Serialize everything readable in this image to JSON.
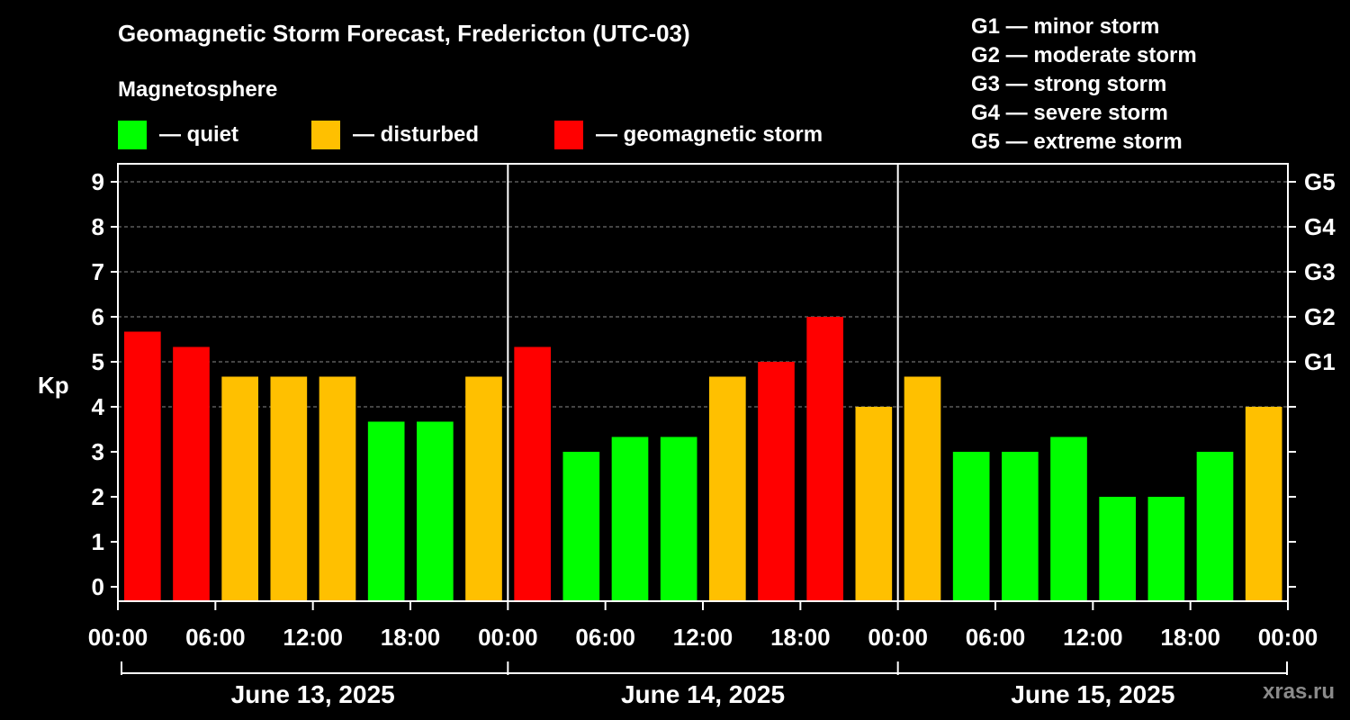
{
  "title": "Geomagnetic Storm Forecast, Fredericton (UTC-03)",
  "magnetosphere_label": "Magnetosphere",
  "legend": [
    {
      "label": "— quiet",
      "color": "#00ff00"
    },
    {
      "label": "— disturbed",
      "color": "#ffc000"
    },
    {
      "label": "— geomagnetic storm",
      "color": "#ff0000"
    }
  ],
  "g_scale": [
    "G1 — minor storm",
    "G2 — moderate storm",
    "G3 — strong storm",
    "G4 — severe storm",
    "G5 — extreme storm"
  ],
  "watermark": "xras.ru",
  "colors": {
    "quiet": "#00ff00",
    "disturbed": "#ffc000",
    "storm": "#ff0000",
    "grid": "#888888",
    "axis": "#ffffff"
  },
  "chart_data": {
    "type": "bar",
    "ylabel": "Kp",
    "ylim": [
      0,
      9
    ],
    "yticks": [
      0,
      1,
      2,
      3,
      4,
      5,
      6,
      7,
      8,
      9
    ],
    "right_ticks": [
      {
        "kp": 5,
        "label": "G1"
      },
      {
        "kp": 6,
        "label": "G2"
      },
      {
        "kp": 7,
        "label": "G3"
      },
      {
        "kp": 8,
        "label": "G4"
      },
      {
        "kp": 9,
        "label": "G5"
      }
    ],
    "x_tick_labels": [
      "00:00",
      "06:00",
      "12:00",
      "18:00",
      "00:00",
      "06:00",
      "12:00",
      "18:00",
      "00:00",
      "06:00",
      "12:00",
      "18:00",
      "00:00"
    ],
    "days": [
      "June 13, 2025",
      "June 14, 2025",
      "June 15, 2025"
    ],
    "interval_hours": 3,
    "values": [
      5.67,
      5.33,
      4.67,
      4.67,
      4.67,
      3.67,
      3.67,
      4.67,
      5.33,
      3.0,
      3.33,
      3.33,
      4.67,
      5.0,
      6.0,
      4.0,
      4.67,
      3.0,
      3.0,
      3.33,
      2.0,
      2.0,
      3.0,
      4.0
    ],
    "levels": [
      "storm",
      "storm",
      "disturbed",
      "disturbed",
      "disturbed",
      "quiet",
      "quiet",
      "disturbed",
      "storm",
      "quiet",
      "quiet",
      "quiet",
      "disturbed",
      "storm",
      "storm",
      "disturbed",
      "disturbed",
      "quiet",
      "quiet",
      "quiet",
      "quiet",
      "quiet",
      "quiet",
      "disturbed"
    ]
  }
}
